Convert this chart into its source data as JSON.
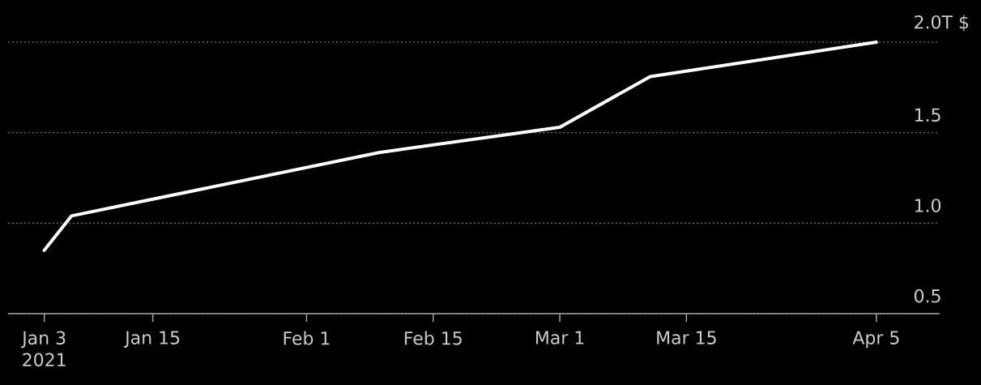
{
  "chart_data": {
    "type": "line",
    "x": [
      "2021-01-03",
      "2021-01-06",
      "2021-02-09",
      "2021-03-01",
      "2021-03-11",
      "2021-04-05"
    ],
    "values": [
      0.85,
      1.04,
      1.39,
      1.53,
      1.81,
      2.0
    ],
    "color": "#ffffff",
    "xlim": [
      "2020-12-30",
      "2021-04-12"
    ],
    "xticks": [
      {
        "value": "2021-01-03",
        "label": "Jan 3 2021"
      },
      {
        "value": "2021-01-15",
        "label": "Jan 15"
      },
      {
        "value": "2021-02-01",
        "label": "Feb 1"
      },
      {
        "value": "2021-02-15",
        "label": "Feb 15"
      },
      {
        "value": "2021-03-01",
        "label": "Mar 1"
      },
      {
        "value": "2021-03-15",
        "label": "Mar 15"
      },
      {
        "value": "2021-04-05",
        "label": "Apr 5"
      }
    ],
    "ylim": [
      0.5,
      2.0
    ],
    "yticks": [
      0.5,
      {
        "value": 1.0,
        "label": "1.0"
      },
      1.5,
      {
        "value": 2.0,
        "label": "2.0T $"
      }
    ],
    "grid": "y",
    "line_style": "solid"
  }
}
